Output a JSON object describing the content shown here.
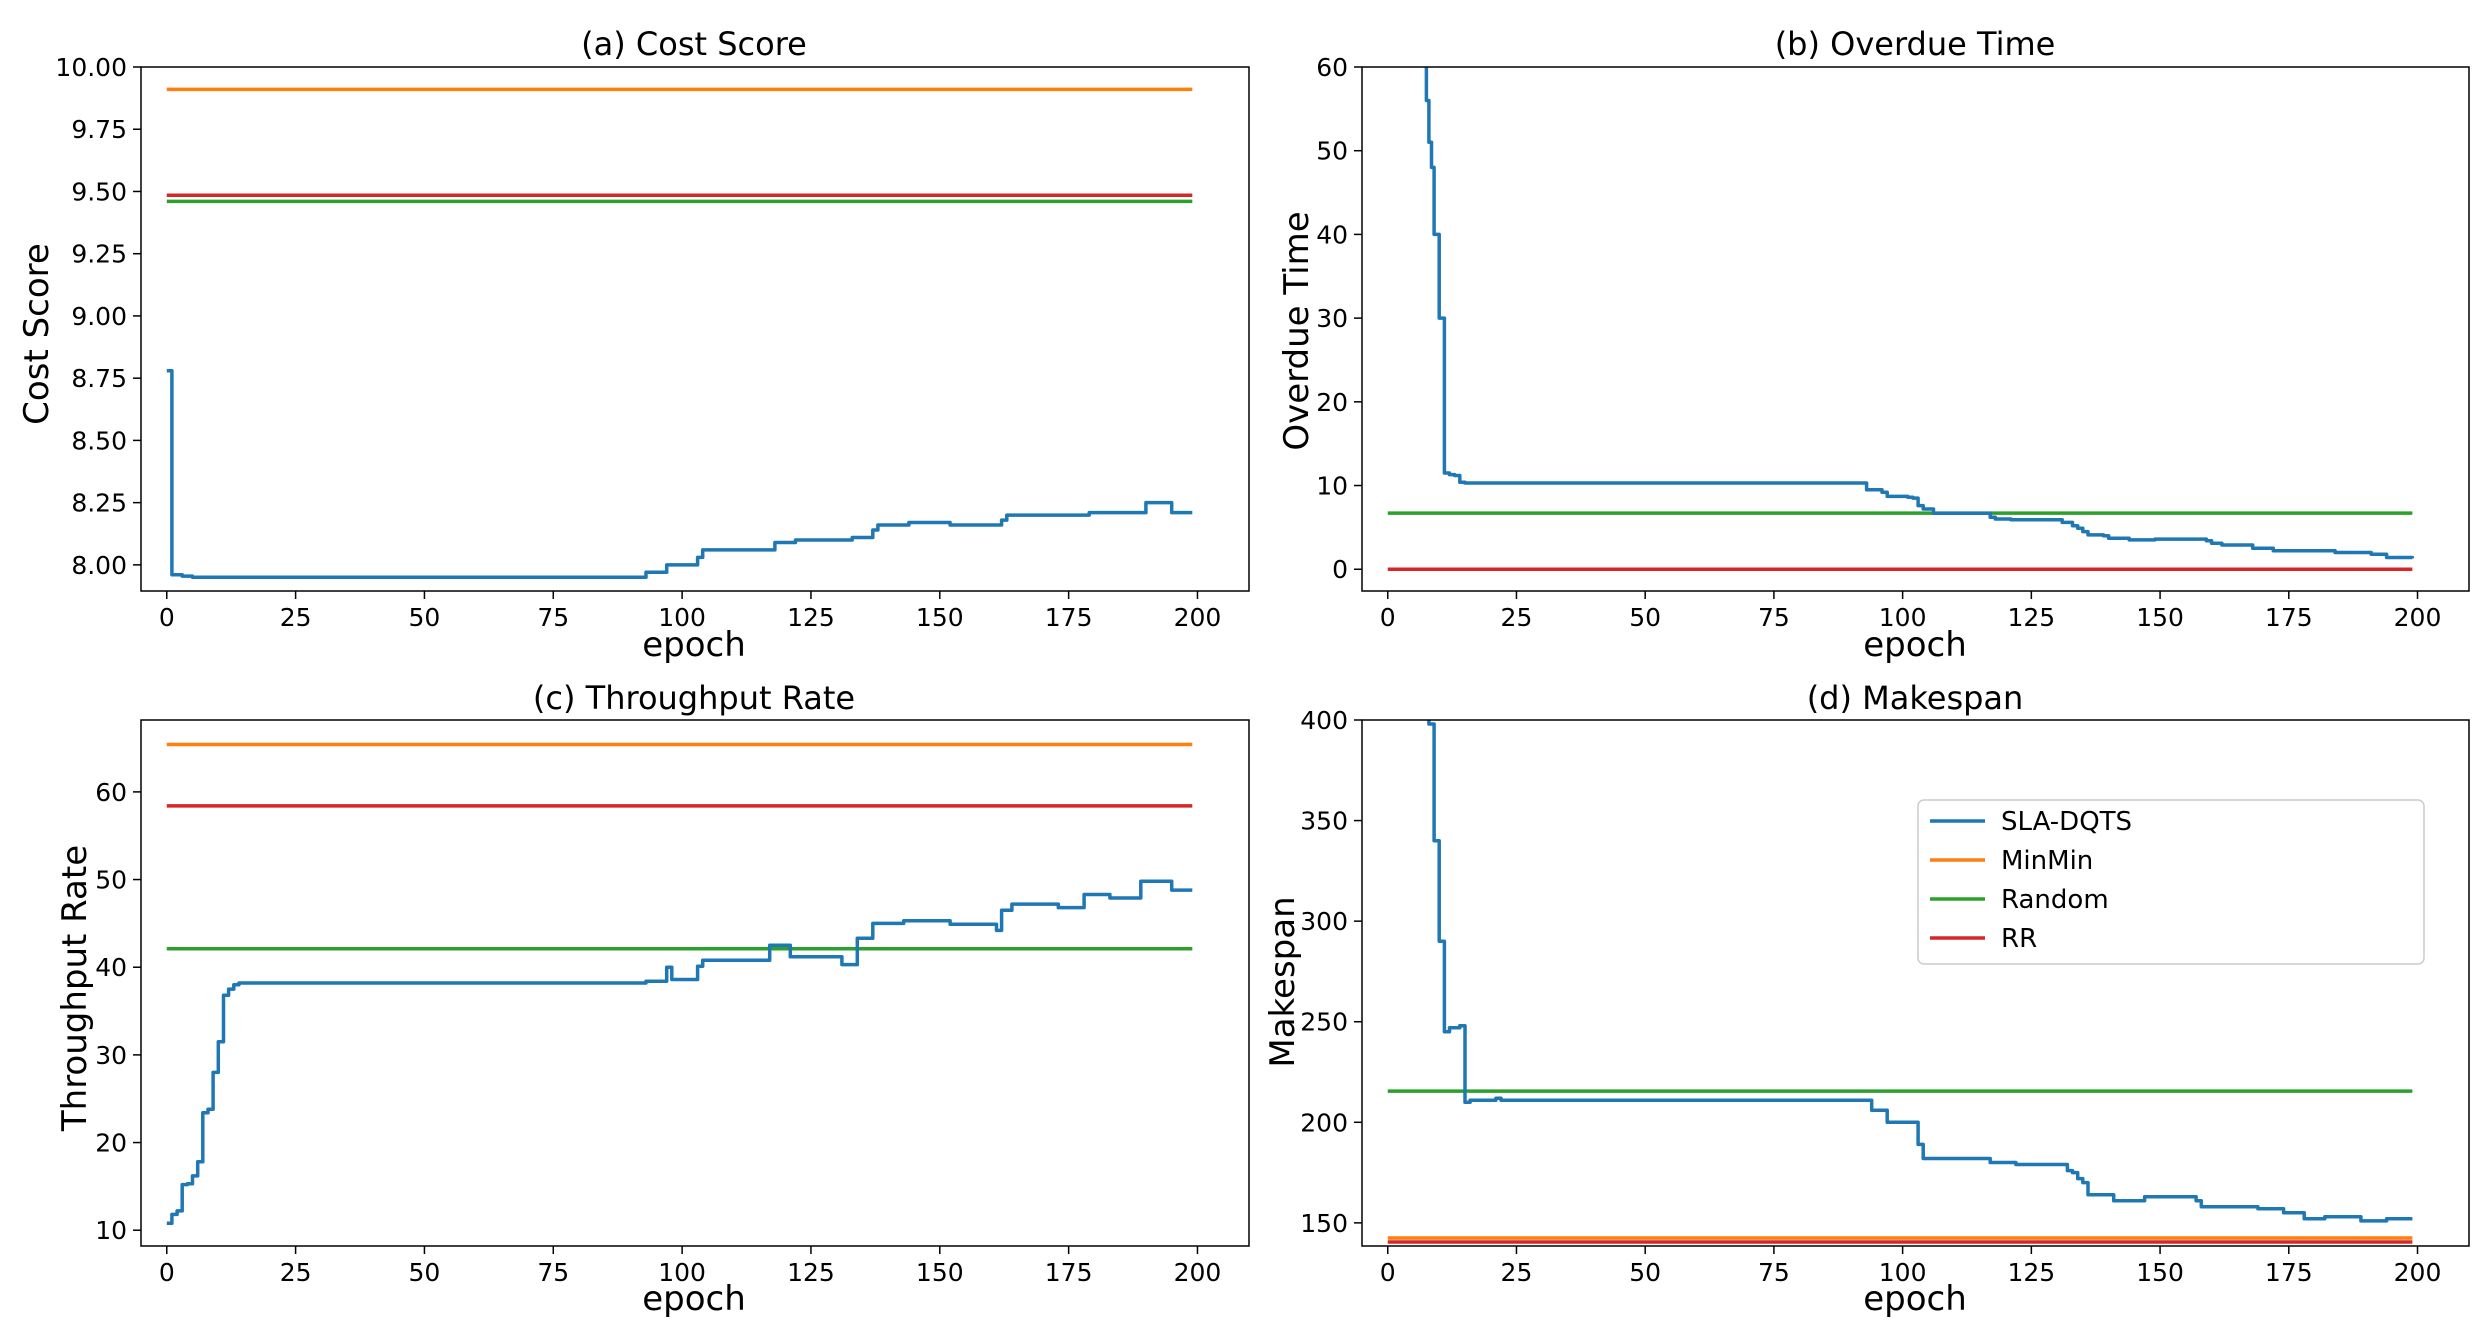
{
  "colors": {
    "SLA-DQTS": "#1f77b4",
    "MinMin": "#ff7f0e",
    "Random": "#2ca02c",
    "RR": "#d62728"
  },
  "legend": {
    "placement": "right-middle of panel (d)",
    "entries": [
      "SLA-DQTS",
      "MinMin",
      "Random",
      "RR"
    ]
  },
  "chart_data": [
    {
      "type": "line",
      "title": "(a) Cost Score",
      "xlabel": "epoch",
      "ylabel": "Cost Score",
      "xlim": [
        -5,
        210
      ],
      "ylim": [
        7.895,
        10.0
      ],
      "xticks": [
        0,
        25,
        50,
        75,
        100,
        125,
        150,
        175,
        200
      ],
      "xtick_labels": [
        "0",
        "25",
        "50",
        "75",
        "100",
        "125",
        "150",
        "175",
        "200"
      ],
      "yticks": [
        8.0,
        8.25,
        8.5,
        8.75,
        9.0,
        9.25,
        9.5,
        9.75,
        10.0
      ],
      "ytick_labels": [
        "8.00",
        "8.25",
        "8.50",
        "8.75",
        "9.00",
        "9.25",
        "9.50",
        "9.75",
        "10.00"
      ],
      "series": [
        {
          "name": "MinMin",
          "constant": 9.91
        },
        {
          "name": "RR",
          "constant": 9.485
        },
        {
          "name": "Random",
          "constant": 9.46
        },
        {
          "name": "SLA-DQTS",
          "step": true,
          "points": [
            [
              0,
              8.78
            ],
            [
              1,
              7.96
            ],
            [
              3,
              7.955
            ],
            [
              5,
              7.95
            ],
            [
              60,
              7.95
            ],
            [
              92,
              7.95
            ],
            [
              93,
              7.97
            ],
            [
              96,
              7.97
            ],
            [
              97,
              8.0
            ],
            [
              102,
              8.0
            ],
            [
              103,
              8.03
            ],
            [
              104,
              8.06
            ],
            [
              117,
              8.06
            ],
            [
              118,
              8.09
            ],
            [
              122,
              8.1
            ],
            [
              132,
              8.1
            ],
            [
              133,
              8.11
            ],
            [
              136,
              8.11
            ],
            [
              137,
              8.14
            ],
            [
              138,
              8.16
            ],
            [
              144,
              8.17
            ],
            [
              151,
              8.17
            ],
            [
              152,
              8.16
            ],
            [
              160,
              8.16
            ],
            [
              162,
              8.18
            ],
            [
              163,
              8.2
            ],
            [
              175,
              8.2
            ],
            [
              179,
              8.21
            ],
            [
              182,
              8.21
            ],
            [
              184,
              8.21
            ],
            [
              189,
              8.21
            ],
            [
              190,
              8.25
            ],
            [
              194,
              8.25
            ],
            [
              195,
              8.21
            ],
            [
              199,
              8.21
            ]
          ]
        }
      ]
    },
    {
      "type": "line",
      "title": "(b) Overdue Time",
      "xlabel": "epoch",
      "ylabel": "Overdue Time",
      "xlim": [
        -5,
        210
      ],
      "ylim": [
        -2.6,
        60
      ],
      "xticks": [
        0,
        25,
        50,
        75,
        100,
        125,
        150,
        175,
        200
      ],
      "xtick_labels": [
        "0",
        "25",
        "50",
        "75",
        "100",
        "125",
        "150",
        "175",
        "200"
      ],
      "yticks": [
        0,
        10,
        20,
        30,
        40,
        50,
        60
      ],
      "ytick_labels": [
        "0",
        "10",
        "20",
        "30",
        "40",
        "50",
        "60"
      ],
      "series": [
        {
          "name": "Random",
          "constant": 6.7
        },
        {
          "name": "RR",
          "constant": 0
        },
        {
          "name": "SLA-DQTS",
          "step": true,
          "points": [
            [
              7,
              61
            ],
            [
              7.5,
              56
            ],
            [
              8,
              51
            ],
            [
              8.5,
              48
            ],
            [
              9,
              40
            ],
            [
              10,
              30
            ],
            [
              11,
              11.5
            ],
            [
              12,
              11.3
            ],
            [
              13,
              11.2
            ],
            [
              14,
              10.4
            ],
            [
              15,
              10.3
            ],
            [
              50,
              10.3
            ],
            [
              92,
              10.3
            ],
            [
              93,
              9.5
            ],
            [
              96,
              9.2
            ],
            [
              97,
              8.7
            ],
            [
              101,
              8.6
            ],
            [
              102,
              8.5
            ],
            [
              103,
              7.6
            ],
            [
              104,
              7.2
            ],
            [
              106,
              6.7
            ],
            [
              116,
              6.7
            ],
            [
              117,
              6.2
            ],
            [
              118,
              6.0
            ],
            [
              121,
              5.9
            ],
            [
              130,
              5.9
            ],
            [
              131,
              5.6
            ],
            [
              133,
              5.2
            ],
            [
              134,
              4.9
            ],
            [
              135,
              4.5
            ],
            [
              136,
              4.1
            ],
            [
              139,
              4.0
            ],
            [
              140,
              3.7
            ],
            [
              143,
              3.7
            ],
            [
              144,
              3.5
            ],
            [
              148,
              3.5
            ],
            [
              149,
              3.6
            ],
            [
              158,
              3.6
            ],
            [
              159,
              3.4
            ],
            [
              160,
              3.1
            ],
            [
              162,
              2.9
            ],
            [
              167,
              2.9
            ],
            [
              168,
              2.5
            ],
            [
              171,
              2.5
            ],
            [
              172,
              2.2
            ],
            [
              183,
              2.2
            ],
            [
              184,
              2.0
            ],
            [
              190,
              2.0
            ],
            [
              191,
              1.8
            ],
            [
              193,
              1.8
            ],
            [
              194,
              1.4
            ],
            [
              197,
              1.4
            ],
            [
              199,
              1.3
            ]
          ]
        }
      ]
    },
    {
      "type": "line",
      "title": "(c) Throughput Rate",
      "xlabel": "epoch",
      "ylabel": "Throughput Rate",
      "xlim": [
        -5,
        210
      ],
      "ylim": [
        8.2,
        68.2
      ],
      "xticks": [
        0,
        25,
        50,
        75,
        100,
        125,
        150,
        175,
        200
      ],
      "xtick_labels": [
        "0",
        "25",
        "50",
        "75",
        "100",
        "125",
        "150",
        "175",
        "200"
      ],
      "yticks": [
        10,
        20,
        30,
        40,
        50,
        60
      ],
      "ytick_labels": [
        "10",
        "20",
        "30",
        "40",
        "50",
        "60"
      ],
      "series": [
        {
          "name": "MinMin",
          "constant": 65.4
        },
        {
          "name": "RR",
          "constant": 58.4
        },
        {
          "name": "Random",
          "constant": 42.1
        },
        {
          "name": "SLA-DQTS",
          "step": true,
          "points": [
            [
              0,
              10.8
            ],
            [
              1,
              11.8
            ],
            [
              2,
              12.2
            ],
            [
              3,
              15.2
            ],
            [
              4,
              15.3
            ],
            [
              5,
              16.2
            ],
            [
              6,
              17.8
            ],
            [
              7,
              23.4
            ],
            [
              8,
              23.8
            ],
            [
              9,
              28
            ],
            [
              10,
              31.5
            ],
            [
              11,
              36.8
            ],
            [
              12,
              37.5
            ],
            [
              13,
              38
            ],
            [
              14,
              38.2
            ],
            [
              25,
              38.2
            ],
            [
              50,
              38.2
            ],
            [
              92,
              38.2
            ],
            [
              93,
              38.4
            ],
            [
              96,
              38.4
            ],
            [
              97,
              40.0
            ],
            [
              98,
              38.6
            ],
            [
              102,
              38.6
            ],
            [
              103,
              40.1
            ],
            [
              104,
              40.8
            ],
            [
              116,
              40.8
            ],
            [
              117,
              42.5
            ],
            [
              120,
              42.5
            ],
            [
              121,
              41.2
            ],
            [
              130,
              41.2
            ],
            [
              131,
              40.3
            ],
            [
              133,
              40.3
            ],
            [
              134,
              43.3
            ],
            [
              136,
              43.3
            ],
            [
              137,
              45.0
            ],
            [
              142,
              45.0
            ],
            [
              143,
              45.3
            ],
            [
              151,
              45.3
            ],
            [
              152,
              44.9
            ],
            [
              160,
              44.9
            ],
            [
              161,
              44.2
            ],
            [
              162,
              46.5
            ],
            [
              164,
              47.2
            ],
            [
              172,
              47.2
            ],
            [
              173,
              46.8
            ],
            [
              177,
              46.8
            ],
            [
              178,
              48.3
            ],
            [
              182,
              48.3
            ],
            [
              183,
              47.9
            ],
            [
              188,
              47.9
            ],
            [
              189,
              49.8
            ],
            [
              194,
              49.8
            ],
            [
              195,
              48.8
            ],
            [
              199,
              48.8
            ]
          ]
        }
      ]
    },
    {
      "type": "line",
      "title": "(d) Makespan",
      "xlabel": "epoch",
      "ylabel": "Makespan",
      "xlim": [
        -5,
        210
      ],
      "ylim": [
        138.5,
        400
      ],
      "xticks": [
        0,
        25,
        50,
        75,
        100,
        125,
        150,
        175,
        200
      ],
      "xtick_labels": [
        "0",
        "25",
        "50",
        "75",
        "100",
        "125",
        "150",
        "175",
        "200"
      ],
      "yticks": [
        150,
        200,
        250,
        300,
        350,
        400
      ],
      "ytick_labels": [
        "150",
        "200",
        "250",
        "300",
        "350",
        "400"
      ],
      "series": [
        {
          "name": "Random",
          "constant": 215.5
        },
        {
          "name": "MinMin",
          "constant": 142.5
        },
        {
          "name": "RR",
          "constant": 140.5
        },
        {
          "name": "SLA-DQTS",
          "step": true,
          "points": [
            [
              7,
              402
            ],
            [
              8,
              398
            ],
            [
              9,
              340
            ],
            [
              10,
              290
            ],
            [
              11,
              245
            ],
            [
              12,
              247
            ],
            [
              14,
              248
            ],
            [
              15,
              210
            ],
            [
              16,
              211
            ],
            [
              20,
              211
            ],
            [
              21,
              212
            ],
            [
              22,
              211
            ],
            [
              50,
              211
            ],
            [
              93,
              211
            ],
            [
              94,
              206
            ],
            [
              96,
              206
            ],
            [
              97,
              200
            ],
            [
              102,
              200
            ],
            [
              103,
              189
            ],
            [
              104,
              182
            ],
            [
              116,
              182
            ],
            [
              117,
              180
            ],
            [
              121,
              180
            ],
            [
              122,
              179
            ],
            [
              131,
              179
            ],
            [
              132,
              176
            ],
            [
              133,
              175
            ],
            [
              134,
              172
            ],
            [
              135,
              170
            ],
            [
              136,
              164
            ],
            [
              140,
              164
            ],
            [
              141,
              161
            ],
            [
              146,
              161
            ],
            [
              147,
              163
            ],
            [
              156,
              163
            ],
            [
              157,
              161
            ],
            [
              158,
              158
            ],
            [
              168,
              158
            ],
            [
              169,
              157
            ],
            [
              173,
              157
            ],
            [
              174,
              155
            ],
            [
              177,
              155
            ],
            [
              178,
              152
            ],
            [
              181,
              152
            ],
            [
              182,
              153
            ],
            [
              188,
              153
            ],
            [
              189,
              151
            ],
            [
              193,
              151
            ],
            [
              194,
              152
            ],
            [
              199,
              152
            ]
          ]
        }
      ]
    }
  ]
}
